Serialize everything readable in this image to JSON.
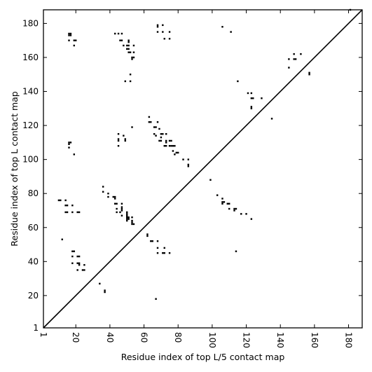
{
  "chart_data": {
    "type": "scatter",
    "title": "",
    "xlabel": "Residue index of top L/5 contact map",
    "ylabel": "Residue index of top L contact map",
    "xlim": [
      1,
      188
    ],
    "ylim": [
      1,
      188
    ],
    "x_ticks": [
      1,
      20,
      40,
      60,
      80,
      100,
      120,
      140,
      160,
      180
    ],
    "y_ticks": [
      1,
      20,
      40,
      60,
      80,
      100,
      120,
      140,
      160,
      180
    ],
    "x_tick_labels": [
      "1",
      "20",
      "40",
      "60",
      "80",
      "100",
      "120",
      "140",
      "160",
      "180"
    ],
    "y_tick_labels": [
      "1",
      "20",
      "40",
      "60",
      "80",
      "100",
      "120",
      "140",
      "160",
      "180"
    ],
    "grid": false,
    "diagonal_line": true,
    "marker_color": "#000000",
    "marker_shape": "square",
    "points": [
      [
        16,
        174
      ],
      [
        16,
        173
      ],
      [
        17,
        174
      ],
      [
        17,
        173
      ],
      [
        16,
        170
      ],
      [
        19,
        170
      ],
      [
        20,
        170
      ],
      [
        19,
        167
      ],
      [
        43,
        174
      ],
      [
        45,
        174
      ],
      [
        47,
        174
      ],
      [
        46,
        170
      ],
      [
        47,
        170
      ],
      [
        51,
        170
      ],
      [
        51,
        169
      ],
      [
        48,
        167
      ],
      [
        50,
        167
      ],
      [
        51,
        167
      ],
      [
        54,
        167
      ],
      [
        50,
        165
      ],
      [
        51,
        165
      ],
      [
        54,
        163
      ],
      [
        51,
        163
      ],
      [
        52,
        163
      ],
      [
        53,
        160
      ],
      [
        54,
        160
      ],
      [
        53,
        159
      ],
      [
        52,
        150
      ],
      [
        49,
        146
      ],
      [
        52,
        146
      ],
      [
        68,
        179
      ],
      [
        68,
        178
      ],
      [
        71,
        179
      ],
      [
        68,
        175
      ],
      [
        71,
        175
      ],
      [
        75,
        175
      ],
      [
        72,
        171
      ],
      [
        75,
        171
      ],
      [
        106,
        178
      ],
      [
        111,
        175
      ],
      [
        16,
        110
      ],
      [
        17,
        110
      ],
      [
        16,
        109
      ],
      [
        16,
        107
      ],
      [
        19,
        103
      ],
      [
        45,
        115
      ],
      [
        48,
        114
      ],
      [
        45,
        112
      ],
      [
        45,
        111
      ],
      [
        49,
        112
      ],
      [
        49,
        111
      ],
      [
        45,
        108
      ],
      [
        53,
        119
      ],
      [
        63,
        125
      ],
      [
        63,
        122
      ],
      [
        64,
        122
      ],
      [
        68,
        122
      ],
      [
        66,
        119
      ],
      [
        67,
        119
      ],
      [
        69,
        118
      ],
      [
        66,
        115
      ],
      [
        67,
        114
      ],
      [
        70,
        115
      ],
      [
        71,
        115
      ],
      [
        70,
        113
      ],
      [
        73,
        115
      ],
      [
        69,
        111
      ],
      [
        70,
        111
      ],
      [
        73,
        111
      ],
      [
        73,
        110
      ],
      [
        75,
        111
      ],
      [
        76,
        111
      ],
      [
        72,
        108
      ],
      [
        73,
        108
      ],
      [
        75,
        108
      ],
      [
        76,
        108
      ],
      [
        77,
        108
      ],
      [
        78,
        108
      ],
      [
        77,
        105
      ],
      [
        79,
        104
      ],
      [
        80,
        104
      ],
      [
        78,
        103
      ],
      [
        83,
        100
      ],
      [
        86,
        100
      ],
      [
        86,
        97
      ],
      [
        86,
        96
      ],
      [
        99,
        88
      ],
      [
        115,
        146
      ],
      [
        121,
        139
      ],
      [
        123,
        139
      ],
      [
        123,
        136
      ],
      [
        124,
        136
      ],
      [
        123,
        131
      ],
      [
        123,
        130
      ],
      [
        129,
        136
      ],
      [
        135,
        124
      ],
      [
        145,
        159
      ],
      [
        148,
        162
      ],
      [
        148,
        159
      ],
      [
        149,
        159
      ],
      [
        152,
        162
      ],
      [
        145,
        154
      ],
      [
        157,
        151
      ],
      [
        157,
        150
      ],
      [
        181,
        188
      ],
      [
        10,
        76
      ],
      [
        11,
        76
      ],
      [
        14,
        76
      ],
      [
        14,
        73
      ],
      [
        15,
        73
      ],
      [
        18,
        73
      ],
      [
        14,
        69
      ],
      [
        15,
        69
      ],
      [
        18,
        69
      ],
      [
        21,
        69
      ],
      [
        22,
        69
      ],
      [
        36,
        84
      ],
      [
        36,
        81
      ],
      [
        39,
        80
      ],
      [
        39,
        78
      ],
      [
        42,
        78
      ],
      [
        43,
        78
      ],
      [
        43,
        77
      ],
      [
        43,
        74
      ],
      [
        44,
        74
      ],
      [
        47,
        74
      ],
      [
        47,
        72
      ],
      [
        44,
        71
      ],
      [
        47,
        71
      ],
      [
        47,
        70
      ],
      [
        46,
        69
      ],
      [
        50,
        69
      ],
      [
        50,
        68
      ],
      [
        47,
        67
      ],
      [
        50,
        67
      ],
      [
        50,
        66
      ],
      [
        51,
        66
      ],
      [
        53,
        66
      ],
      [
        50,
        65
      ],
      [
        51,
        65
      ],
      [
        50,
        64
      ],
      [
        53,
        64
      ],
      [
        53,
        63
      ],
      [
        54,
        62
      ],
      [
        53,
        62
      ],
      [
        44,
        69
      ],
      [
        12,
        53
      ],
      [
        18,
        46
      ],
      [
        19,
        46
      ],
      [
        18,
        43
      ],
      [
        21,
        43
      ],
      [
        22,
        43
      ],
      [
        18,
        39
      ],
      [
        21,
        39
      ],
      [
        22,
        39
      ],
      [
        22,
        38
      ],
      [
        21,
        35
      ],
      [
        24,
        35
      ],
      [
        25,
        35
      ],
      [
        25,
        38
      ],
      [
        34,
        27
      ],
      [
        37,
        23
      ],
      [
        37,
        22
      ],
      [
        62,
        56
      ],
      [
        62,
        55
      ],
      [
        64,
        52
      ],
      [
        65,
        52
      ],
      [
        68,
        52
      ],
      [
        68,
        48
      ],
      [
        72,
        48
      ],
      [
        68,
        45
      ],
      [
        71,
        45
      ],
      [
        72,
        45
      ],
      [
        75,
        45
      ],
      [
        67,
        18
      ],
      [
        103,
        79
      ],
      [
        106,
        77
      ],
      [
        106,
        75
      ],
      [
        107,
        75
      ],
      [
        106,
        74
      ],
      [
        109,
        74
      ],
      [
        110,
        74
      ],
      [
        110,
        71
      ],
      [
        113,
        71
      ],
      [
        114,
        71
      ],
      [
        113,
        70
      ],
      [
        117,
        68
      ],
      [
        120,
        68
      ],
      [
        123,
        65
      ],
      [
        114,
        46
      ]
    ]
  }
}
